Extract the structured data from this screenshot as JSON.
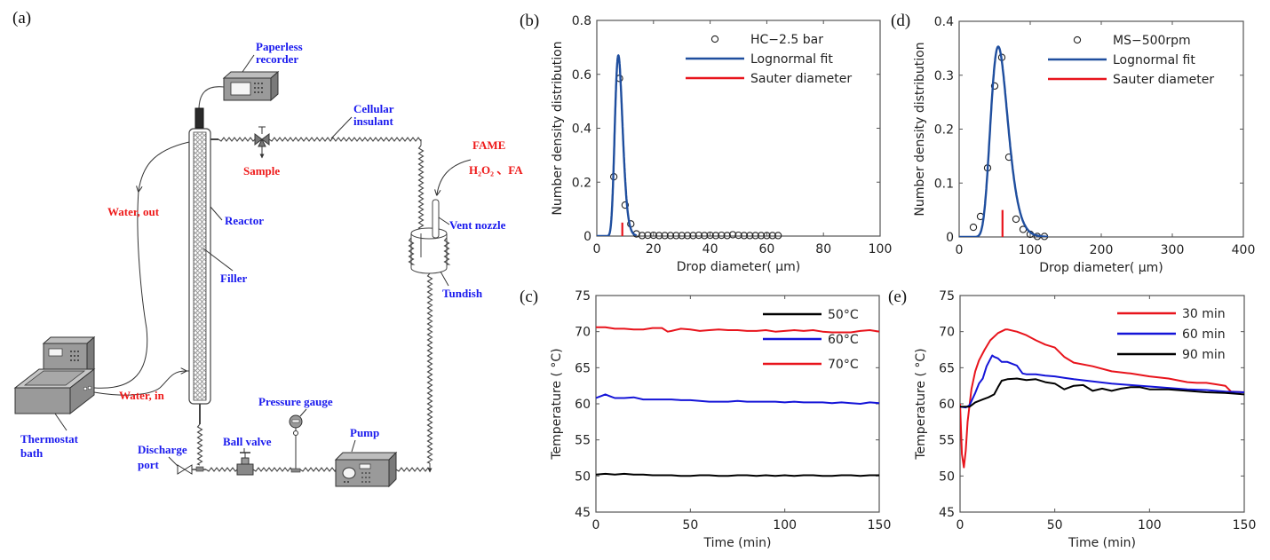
{
  "figure": {
    "panels": {
      "a": {
        "letter": "(a)"
      },
      "b": {
        "letter": "(b)"
      },
      "c": {
        "letter": "(c)"
      },
      "d": {
        "letter": "(d)"
      },
      "e": {
        "letter": "(e)"
      }
    }
  },
  "diagram": {
    "labels_blue": {
      "paperless_recorder_1": "Paperless",
      "paperless_recorder_2": "recorder",
      "cellular_insulant_1": "Cellular",
      "cellular_insulant_2": "insulant",
      "reactor": "Reactor",
      "filler": "Filler",
      "vent_nozzle": "Vent nozzle",
      "tundish": "Tundish",
      "thermostat_bath_1": "Thermostat",
      "thermostat_bath_2": "bath",
      "pressure_gauge": "Pressure gauge",
      "pump": "Pump",
      "ball_valve": "Ball valve",
      "discharge_port_1": "Discharge",
      "discharge_port_2": "port"
    },
    "labels_red": {
      "sample": "Sample",
      "water_out": "Water, out",
      "water_in": "Water, in",
      "fame": "FAME",
      "h2o2_fa": "H₂O₂ 、FA"
    },
    "colors": {
      "blue_label": "#1a1aee",
      "red_label": "#ee1a1a",
      "equipment": "#9a9a9a"
    }
  },
  "chart_data": [
    {
      "id": "b",
      "type": "scatter",
      "title": "",
      "xlabel": "Drop diameter( μm)",
      "ylabel": "Number density distribution",
      "xlim": [
        0,
        100
      ],
      "ylim": [
        0,
        0.8
      ],
      "xticks": [
        0,
        20,
        40,
        60,
        80,
        100
      ],
      "yticks": [
        0,
        0.2,
        0.4,
        0.6,
        0.8
      ],
      "ytick_labels": [
        "0",
        "0.2",
        "0.4",
        "0.6",
        "0.8"
      ],
      "legend_position": "top-right",
      "series": [
        {
          "name": "HC−2.5 bar",
          "kind": "markers",
          "color": "#222222",
          "x": [
            6,
            8,
            10,
            12,
            14,
            16,
            18,
            20,
            22,
            24,
            26,
            28,
            30,
            32,
            34,
            36,
            38,
            40,
            42,
            44,
            46,
            48,
            50,
            52,
            54,
            56,
            58,
            60,
            62,
            64
          ],
          "y": [
            0.22,
            0.585,
            0.115,
            0.045,
            0.008,
            0.002,
            0.003,
            0.003,
            0.002,
            0.002,
            0.002,
            0.002,
            0.002,
            0.002,
            0.002,
            0.003,
            0.002,
            0.003,
            0.002,
            0.003,
            0.002,
            0.005,
            0.003,
            0.002,
            0.002,
            0.002,
            0.002,
            0.002,
            0.002,
            0.002
          ]
        },
        {
          "name": "Lognormal fit",
          "kind": "lognormal",
          "color": "#1f4e9e",
          "peak_x": 7.6,
          "peak_y": 0.67,
          "sigma": 0.18,
          "x_range": [
            0,
            14
          ]
        },
        {
          "name": "Sauter diameter",
          "kind": "vline",
          "color": "#e8141c",
          "x": 9,
          "y_top": 0.05
        }
      ]
    },
    {
      "id": "d",
      "type": "scatter",
      "title": "",
      "xlabel": "Drop diameter( μm)",
      "ylabel": "Number density distribution",
      "xlim": [
        0,
        400
      ],
      "ylim": [
        0,
        0.4
      ],
      "xticks": [
        0,
        100,
        200,
        300,
        400
      ],
      "yticks": [
        0,
        0.1,
        0.2,
        0.3,
        0.4
      ],
      "ytick_labels": [
        "0",
        "0.1",
        "0.2",
        "0.3",
        "0.4"
      ],
      "legend_position": "top-right",
      "series": [
        {
          "name": "MS−500rpm",
          "kind": "markers",
          "color": "#222222",
          "x": [
            20,
            30,
            40,
            50,
            60,
            70,
            80,
            90,
            100,
            110,
            120
          ],
          "y": [
            0.018,
            0.038,
            0.128,
            0.28,
            0.333,
            0.148,
            0.033,
            0.014,
            0.005,
            0.001,
            0.001
          ]
        },
        {
          "name": "Lognormal fit",
          "kind": "lognormal",
          "color": "#1f4e9e",
          "peak_x": 55,
          "peak_y": 0.353,
          "sigma": 0.22,
          "x_range": [
            20,
            125
          ]
        },
        {
          "name": "Sauter diameter",
          "kind": "vline",
          "color": "#e8141c",
          "x": 61,
          "y_top": 0.05
        }
      ]
    },
    {
      "id": "c",
      "type": "line",
      "title": "",
      "xlabel": "Time (min)",
      "ylabel": "Temperature ( °C)",
      "xlim": [
        0,
        150
      ],
      "ylim": [
        45,
        75
      ],
      "xticks": [
        0,
        50,
        100,
        150
      ],
      "yticks": [
        45,
        50,
        55,
        60,
        65,
        70,
        75
      ],
      "legend_position": "top-right",
      "series": [
        {
          "name": "50°C",
          "color": "#000000",
          "x": [
            0,
            5,
            10,
            15,
            20,
            25,
            30,
            35,
            40,
            45,
            50,
            55,
            60,
            65,
            70,
            75,
            80,
            85,
            90,
            95,
            100,
            105,
            110,
            115,
            120,
            125,
            130,
            135,
            140,
            145,
            150
          ],
          "y": [
            50.2,
            50.3,
            50.2,
            50.3,
            50.2,
            50.2,
            50.1,
            50.1,
            50.1,
            50.0,
            50.0,
            50.1,
            50.1,
            50.0,
            50.0,
            50.1,
            50.1,
            50.0,
            50.1,
            50.0,
            50.1,
            50.0,
            50.1,
            50.1,
            50.0,
            50.0,
            50.1,
            50.1,
            50.0,
            50.1,
            50.1
          ]
        },
        {
          "name": "60°C",
          "color": "#1414d8",
          "x": [
            0,
            3,
            5,
            8,
            10,
            15,
            20,
            25,
            30,
            35,
            40,
            45,
            50,
            55,
            60,
            65,
            70,
            75,
            80,
            85,
            90,
            95,
            100,
            105,
            110,
            115,
            120,
            125,
            130,
            135,
            140,
            145,
            150
          ],
          "y": [
            60.8,
            61.1,
            61.3,
            61.0,
            60.8,
            60.8,
            60.9,
            60.6,
            60.6,
            60.6,
            60.6,
            60.5,
            60.5,
            60.4,
            60.3,
            60.3,
            60.3,
            60.4,
            60.3,
            60.3,
            60.3,
            60.3,
            60.2,
            60.3,
            60.2,
            60.2,
            60.2,
            60.1,
            60.2,
            60.1,
            60.0,
            60.2,
            60.1
          ]
        },
        {
          "name": "70°C",
          "color": "#e8141c",
          "x": [
            0,
            5,
            10,
            15,
            20,
            25,
            30,
            35,
            38,
            40,
            45,
            50,
            55,
            60,
            65,
            70,
            75,
            80,
            85,
            90,
            95,
            100,
            105,
            110,
            115,
            120,
            125,
            130,
            135,
            140,
            145,
            150
          ],
          "y": [
            70.6,
            70.6,
            70.4,
            70.4,
            70.3,
            70.3,
            70.5,
            70.5,
            70.0,
            70.1,
            70.4,
            70.3,
            70.1,
            70.2,
            70.3,
            70.2,
            70.2,
            70.1,
            70.1,
            70.2,
            70.0,
            70.1,
            70.2,
            70.1,
            70.2,
            70.0,
            69.9,
            69.9,
            69.9,
            70.1,
            70.2,
            70.0
          ]
        }
      ]
    },
    {
      "id": "e",
      "type": "line",
      "title": "",
      "xlabel": "Time (min)",
      "ylabel": "Temperature ( °C)",
      "xlim": [
        0,
        150
      ],
      "ylim": [
        45,
        75
      ],
      "xticks": [
        0,
        50,
        100,
        150
      ],
      "yticks": [
        45,
        50,
        55,
        60,
        65,
        70,
        75
      ],
      "legend_position": "top-right",
      "series": [
        {
          "name": "30 min",
          "color": "#e8141c",
          "x": [
            0,
            1,
            2,
            3,
            4,
            6,
            8,
            10,
            13,
            16,
            20,
            24,
            25,
            30,
            35,
            40,
            45,
            50,
            55,
            60,
            70,
            80,
            90,
            100,
            110,
            120,
            125,
            130,
            135,
            140,
            143,
            150
          ],
          "y": [
            60.0,
            53.0,
            51.2,
            53.5,
            57.5,
            62.0,
            64.5,
            66.0,
            67.5,
            68.8,
            69.8,
            70.3,
            70.3,
            70.0,
            69.5,
            68.8,
            68.2,
            67.8,
            66.5,
            65.7,
            65.2,
            64.5,
            64.2,
            63.8,
            63.5,
            63.0,
            62.9,
            62.9,
            62.7,
            62.5,
            61.7,
            61.6
          ]
        },
        {
          "name": "60 min",
          "color": "#1414d8",
          "x": [
            0,
            3,
            5,
            8,
            10,
            12,
            14,
            16,
            17,
            18,
            20,
            22,
            25,
            28,
            30,
            33,
            35,
            40,
            45,
            50,
            55,
            60,
            70,
            80,
            90,
            100,
            110,
            120,
            130,
            140,
            150
          ],
          "y": [
            59.6,
            59.5,
            59.8,
            61.5,
            62.8,
            63.5,
            65.2,
            66.2,
            66.7,
            66.5,
            66.3,
            65.8,
            65.8,
            65.5,
            65.3,
            64.2,
            64.1,
            64.1,
            63.9,
            63.8,
            63.6,
            63.4,
            63.1,
            62.8,
            62.6,
            62.4,
            62.2,
            62.0,
            61.9,
            61.7,
            61.6
          ]
        },
        {
          "name": "90 min",
          "color": "#000000",
          "x": [
            0,
            5,
            8,
            12,
            15,
            18,
            20,
            22,
            25,
            30,
            35,
            40,
            45,
            50,
            55,
            60,
            65,
            70,
            75,
            80,
            85,
            90,
            95,
            100,
            110,
            120,
            130,
            140,
            150
          ],
          "y": [
            59.6,
            59.6,
            60.2,
            60.6,
            60.9,
            61.3,
            62.3,
            63.2,
            63.4,
            63.5,
            63.3,
            63.4,
            63.0,
            62.8,
            62.0,
            62.5,
            62.6,
            61.8,
            62.1,
            61.8,
            62.1,
            62.3,
            62.3,
            62.0,
            62.0,
            61.8,
            61.6,
            61.5,
            61.3
          ]
        }
      ]
    }
  ]
}
